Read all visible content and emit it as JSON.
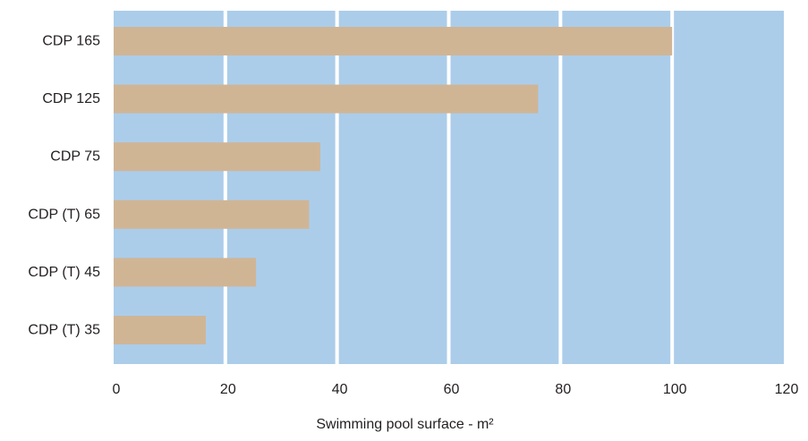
{
  "chart_data": {
    "type": "bar",
    "orientation": "horizontal",
    "categories": [
      "CDP 165",
      "CDP 125",
      "CDP 75",
      "CDP (T) 65",
      "CDP (T) 45",
      "CDP (T) 35"
    ],
    "values": [
      100,
      76,
      37,
      35,
      25.5,
      16.5
    ],
    "xlabel": "Swimming pool surface - m²",
    "ylabel": "",
    "xlim": [
      0,
      120
    ],
    "xticks": [
      0,
      20,
      40,
      60,
      80,
      100,
      120
    ],
    "grid": true,
    "colors": {
      "plot_background": "#abcdea",
      "bar": "#d0b595",
      "gridline": "#ffffff",
      "text": "#231f20"
    }
  }
}
